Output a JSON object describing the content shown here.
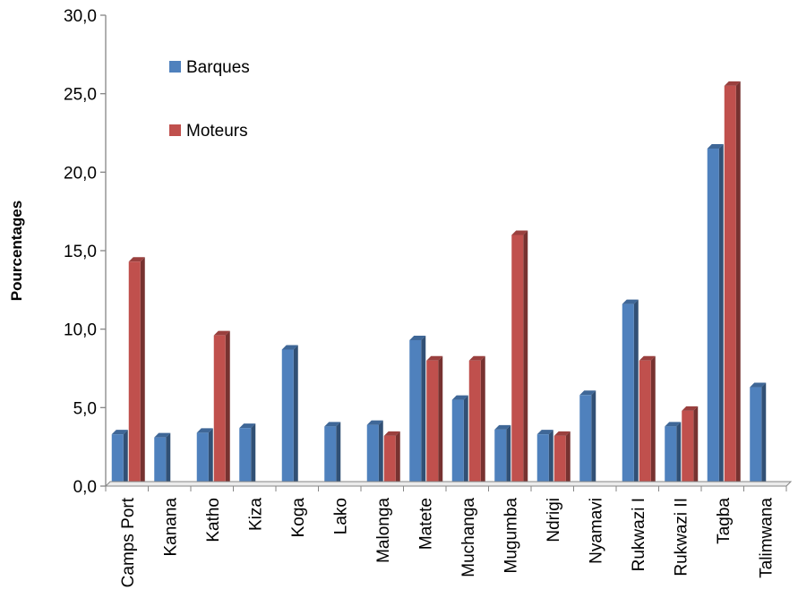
{
  "colors": {
    "barques": "#4f81bd",
    "moteurs": "#c0504d",
    "axis": "#868686"
  },
  "chart_data": {
    "type": "bar",
    "title": "",
    "xlabel": "",
    "ylabel": "Pourcentages",
    "ylim": [
      0,
      30
    ],
    "yticks": [
      "0,0",
      "5,0",
      "10,0",
      "15,0",
      "20,0",
      "25,0",
      "30,0"
    ],
    "ytick_values": [
      0,
      5,
      10,
      15,
      20,
      25,
      30
    ],
    "grid": false,
    "legend_position": "top-left",
    "categories": [
      "Camps Port",
      "Kanana",
      "Katho",
      "Kiza",
      "Koga",
      "Lako",
      "Malonga",
      "Matete",
      "Muchanga",
      "Mugumba",
      "Ndrigi",
      "Nyamavi",
      "Rukwazi I",
      "Rukwazi II",
      "Tagba",
      "Talimwana"
    ],
    "series": [
      {
        "name": "Barques",
        "color": "#4f81bd",
        "values": [
          3.3,
          3.1,
          3.4,
          3.7,
          8.7,
          3.8,
          3.9,
          9.3,
          5.5,
          3.6,
          3.3,
          5.8,
          11.6,
          3.8,
          21.5,
          6.3
        ]
      },
      {
        "name": "Moteurs",
        "color": "#c0504d",
        "values": [
          14.3,
          0,
          9.6,
          0,
          0,
          0,
          3.2,
          8.0,
          8.0,
          16.0,
          3.2,
          0,
          8.0,
          4.8,
          25.5,
          0
        ]
      }
    ]
  }
}
